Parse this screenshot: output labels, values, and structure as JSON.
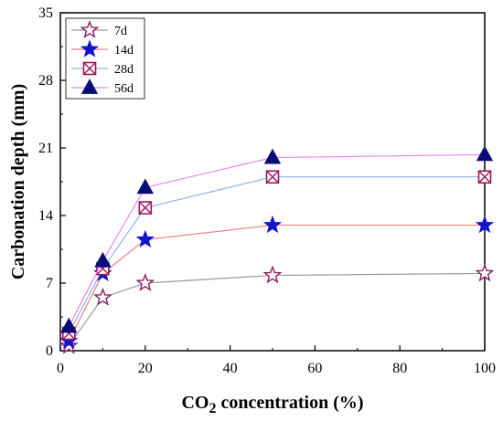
{
  "chart_data": {
    "type": "line",
    "title": "",
    "xlabel": {
      "main": "CO",
      "sub": "2",
      "rest": " concentration (%)"
    },
    "ylabel": "Carbonation depth (mm)",
    "xlim": [
      0,
      100
    ],
    "ylim": [
      0,
      35
    ],
    "xticks": [
      0,
      20,
      40,
      60,
      80,
      100
    ],
    "yticks": [
      0,
      7,
      14,
      21,
      28,
      35
    ],
    "grid": false,
    "legend_position": "top-left",
    "x": [
      2,
      10,
      20,
      50,
      100
    ],
    "series": [
      {
        "name": "7d",
        "values": [
          0.5,
          5.5,
          7.0,
          7.8,
          8.0
        ],
        "marker": "star-open",
        "marker_color": "#8b1a6b",
        "line_color": "#9a9a9a"
      },
      {
        "name": "14d",
        "values": [
          1.0,
          8.0,
          11.5,
          13.0,
          13.0
        ],
        "marker": "star-filled",
        "marker_color": "#1414c8",
        "line_color": "#f08080"
      },
      {
        "name": "28d",
        "values": [
          1.8,
          8.5,
          14.8,
          18.0,
          18.0
        ],
        "marker": "square-x",
        "marker_color": "#a0155a",
        "line_color": "#8cb4f0"
      },
      {
        "name": "56d",
        "values": [
          2.5,
          9.3,
          16.9,
          20.0,
          20.3
        ],
        "marker": "triangle-filled",
        "marker_color": "#0a0a78",
        "line_color": "#ee82ee"
      }
    ]
  }
}
